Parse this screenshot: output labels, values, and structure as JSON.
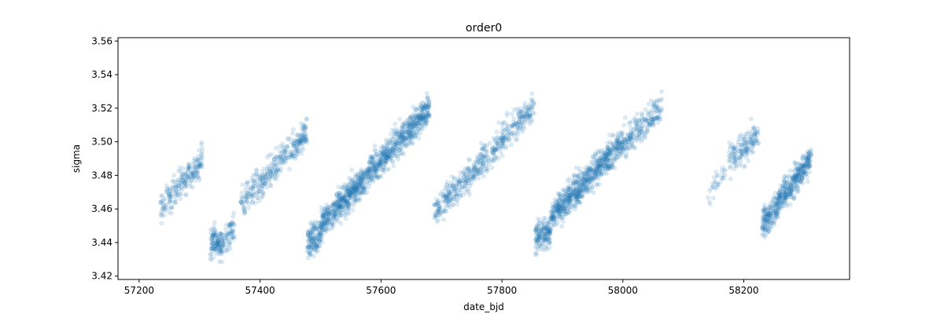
{
  "chart_data": {
    "type": "scatter",
    "title": "order0",
    "xlabel": "date_bjd",
    "ylabel": "sigma",
    "xlim": [
      57165,
      58375
    ],
    "ylim": [
      3.418,
      3.562
    ],
    "xticks": [
      57200,
      57400,
      57600,
      57800,
      58000,
      58200
    ],
    "yticks": [
      3.42,
      3.44,
      3.46,
      3.48,
      3.5,
      3.52,
      3.54,
      3.56
    ],
    "xtick_labels": [
      "57200",
      "57400",
      "57600",
      "57800",
      "58000",
      "58200"
    ],
    "ytick_labels": [
      "3.42",
      "3.44",
      "3.46",
      "3.48",
      "3.50",
      "3.52",
      "3.54",
      "3.56"
    ],
    "grid": false,
    "marker_color": "#1f77b4",
    "marker_alpha": 0.15,
    "series": [
      {
        "segments": [
          {
            "x": [
              57235,
              57305
            ],
            "y": [
              3.46,
              3.49
            ],
            "density": 3
          },
          {
            "x": [
              57318,
              57338
            ],
            "y": [
              3.44,
              3.44
            ],
            "density": 6
          },
          {
            "x": [
              57338,
              57358
            ],
            "y": [
              3.44,
              3.45
            ],
            "density": 3
          },
          {
            "x": [
              57368,
              57478
            ],
            "y": [
              3.462,
              3.506
            ],
            "density": 3
          },
          {
            "x": [
              57478,
              57500
            ],
            "y": [
              3.44,
              3.445
            ],
            "density": 6
          },
          {
            "x": [
              57500,
              57680
            ],
            "y": [
              3.45,
              3.52
            ],
            "density": 6
          },
          {
            "x": [
              57688,
              57855
            ],
            "y": [
              3.458,
              3.522
            ],
            "density": 3
          },
          {
            "x": [
              57855,
              57880
            ],
            "y": [
              3.442,
              3.447
            ],
            "density": 6
          },
          {
            "x": [
              57880,
              58000
            ],
            "y": [
              3.455,
              3.5
            ],
            "density": 6
          },
          {
            "x": [
              58000,
              58065
            ],
            "y": [
              3.5,
              3.52
            ],
            "density": 3
          },
          {
            "x": [
              58140,
              58170
            ],
            "y": [
              3.47,
              3.482
            ],
            "density": 1
          },
          {
            "x": [
              58175,
              58225
            ],
            "y": [
              3.488,
              3.504
            ],
            "density": 3
          },
          {
            "x": [
              58230,
              58258
            ],
            "y": [
              3.45,
              3.463
            ],
            "density": 6
          },
          {
            "x": [
              58258,
              58312
            ],
            "y": [
              3.465,
              3.49
            ],
            "density": 6
          }
        ]
      }
    ]
  }
}
